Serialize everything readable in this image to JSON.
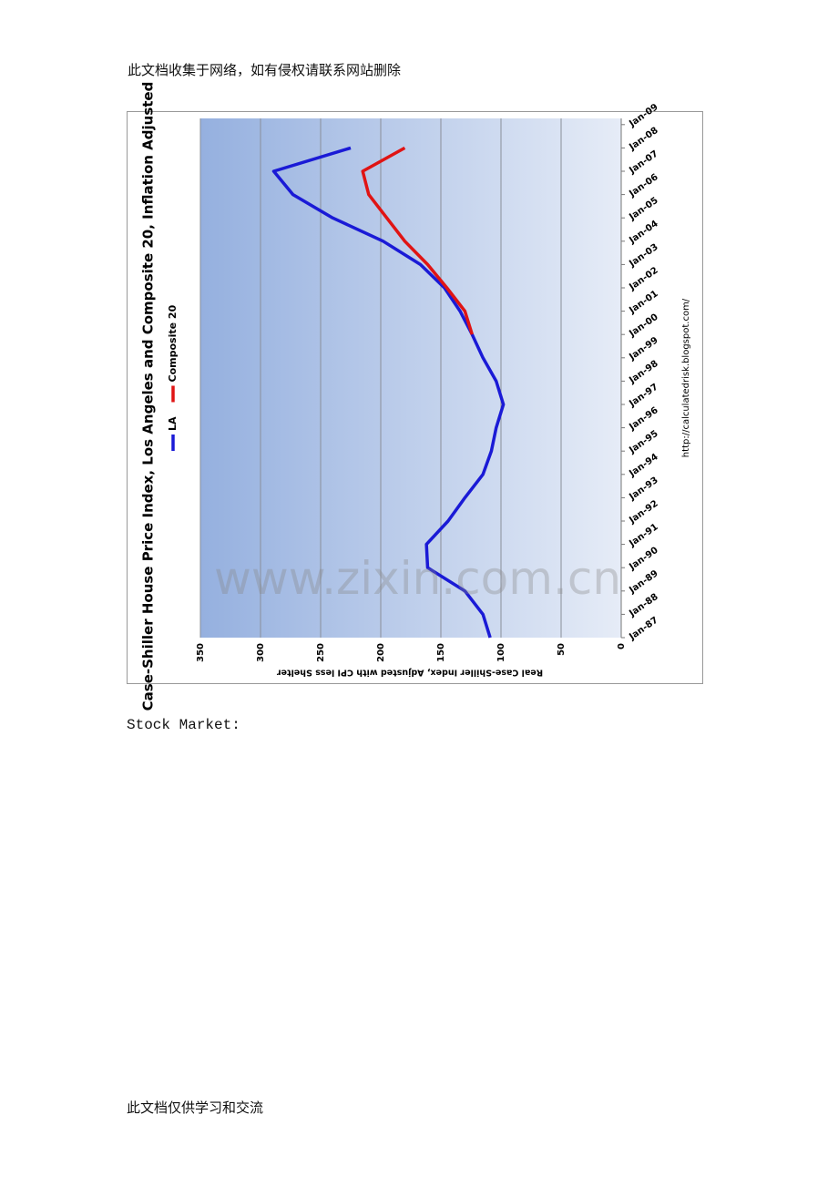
{
  "header": "此文档收集于网络，如有侵权请联系网站删除",
  "chart_data": {
    "type": "line",
    "title": "Case-Shiller House Price Index, Los Angeles and Composite 20, Inflation Adjusted",
    "y_label": "Real Case-Shiller Index, Adjusted with CPI less Shelter",
    "source": "http://calculatedrisk.blogspot.com/",
    "categories": [
      "Jan-87",
      "Jan-88",
      "Jan-89",
      "Jan-90",
      "Jan-91",
      "Jan-92",
      "Jan-93",
      "Jan-94",
      "Jan-95",
      "Jan-96",
      "Jan-97",
      "Jan-98",
      "Jan-99",
      "Jan-00",
      "Jan-01",
      "Jan-02",
      "Jan-03",
      "Jan-04",
      "Jan-05",
      "Jan-06",
      "Jan-07",
      "Jan-08",
      "Jan-09"
    ],
    "series": [
      {
        "name": "LA",
        "color": "#1a1ad6",
        "values": [
          109,
          115,
          130,
          161,
          162,
          144,
          130,
          115,
          108,
          104,
          98,
          104,
          115,
          124,
          134,
          147,
          167,
          198,
          240,
          273,
          289,
          225,
          null
        ]
      },
      {
        "name": "Composite 20",
        "color": "#e01414",
        "values": [
          null,
          null,
          null,
          null,
          null,
          null,
          null,
          null,
          null,
          null,
          null,
          null,
          null,
          124,
          130,
          145,
          161,
          180,
          195,
          210,
          215,
          180,
          null
        ]
      }
    ],
    "ylim": [
      0,
      350
    ],
    "yticks": [
      0,
      50,
      100,
      150,
      200,
      250,
      300,
      350
    ],
    "grid": true
  },
  "section_label": "Stock Market:",
  "footer": "此文档仅供学习和交流",
  "watermark": "www.zixin.com.cn"
}
